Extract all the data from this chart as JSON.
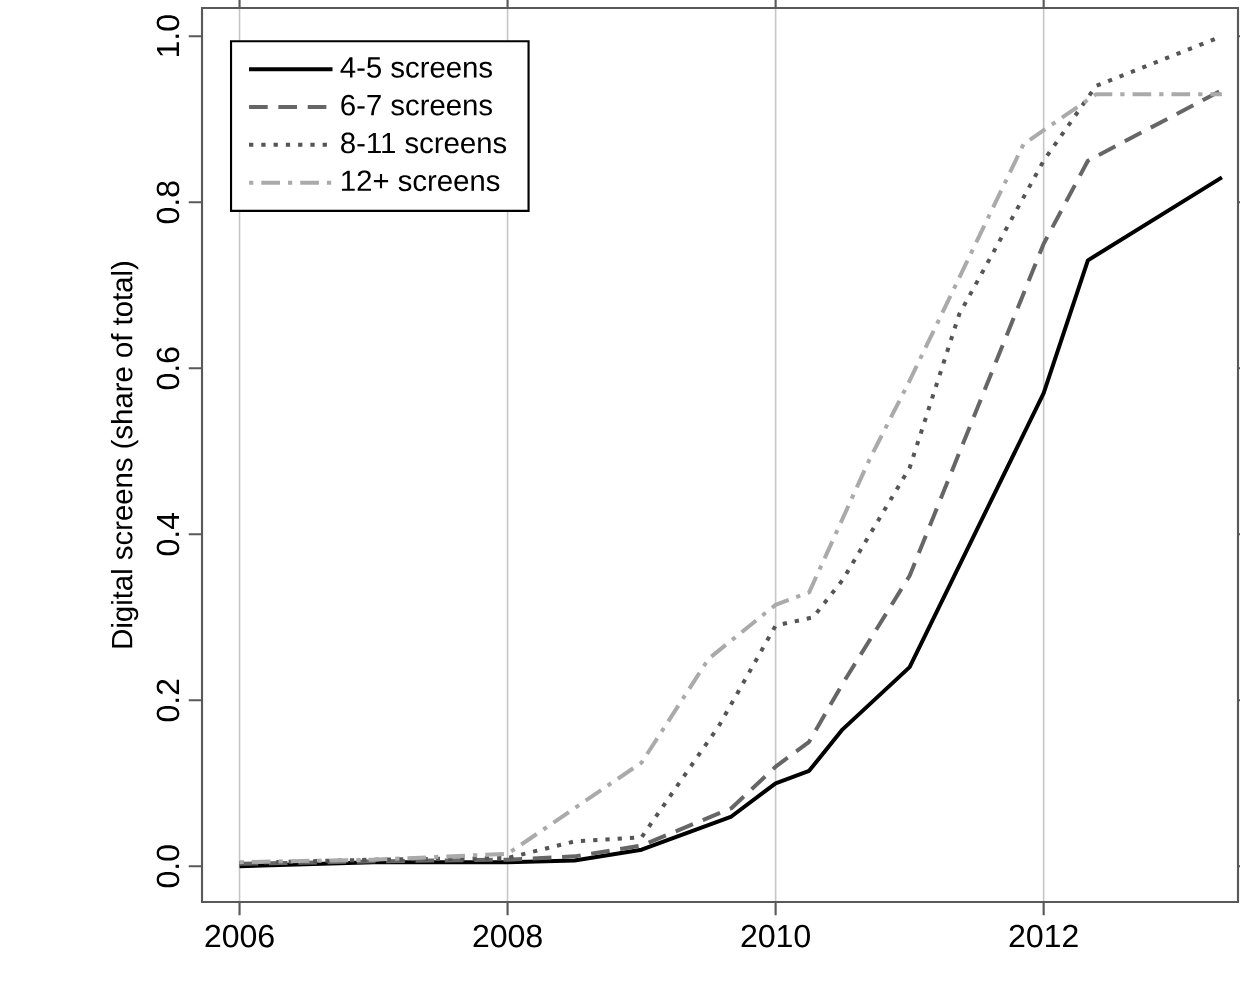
{
  "chart_data": {
    "type": "line",
    "ylabel": "Digital screens (share of total)",
    "xlim": [
      2005.72,
      2013.45
    ],
    "ylim": [
      -0.043,
      1.034
    ],
    "xticks": [
      2006,
      2008,
      2010,
      2012
    ],
    "yticks": [
      {
        "value": 0,
        "label": "0.0"
      },
      0.2,
      0.4,
      0.6,
      0.8,
      {
        "value": 1,
        "label": "1.0"
      }
    ],
    "grid": "x",
    "legend": "top left",
    "series": [
      {
        "name": "4-5 screens",
        "color": "#000000",
        "line_style": "solid",
        "x": [
          2006,
          2007,
          2008,
          2008.5,
          2009,
          2009.67,
          2010,
          2010.25,
          2010.5,
          2011,
          2012,
          2012.33,
          2013.33
        ],
        "values": [
          0.0,
          0.005,
          0.005,
          0.007,
          0.02,
          0.06,
          0.1,
          0.115,
          0.165,
          0.24,
          0.57,
          0.73,
          0.83
        ]
      },
      {
        "name": "6-7 screens",
        "color": "#666666",
        "line_style": "dashed",
        "x": [
          2006,
          2007,
          2008,
          2008.5,
          2009,
          2009.67,
          2010,
          2010.25,
          2010.5,
          2011,
          2012,
          2012.33,
          2013.33
        ],
        "values": [
          0.003,
          0.006,
          0.008,
          0.012,
          0.025,
          0.07,
          0.12,
          0.15,
          0.22,
          0.35,
          0.75,
          0.85,
          0.935
        ]
      },
      {
        "name": "8-11 screens",
        "color": "#555555",
        "line_style": "dotted",
        "x": [
          2006,
          2007,
          2008,
          2008.5,
          2009,
          2009.58,
          2010,
          2010.28,
          2010.5,
          2011,
          2011.37,
          2012,
          2012.39,
          2013.33
        ],
        "values": [
          0.004,
          0.008,
          0.01,
          0.03,
          0.035,
          0.17,
          0.29,
          0.3,
          0.345,
          0.48,
          0.665,
          0.85,
          0.94,
          1.0
        ]
      },
      {
        "name": "12+ screens",
        "color": "#aaaaaa",
        "line_style": "dashdot",
        "x": [
          2006,
          2007,
          2008,
          2009,
          2009.5,
          2010,
          2010.25,
          2010.7,
          2011,
          2011.85,
          2012.39,
          2013.33
        ],
        "values": [
          0.005,
          0.008,
          0.015,
          0.125,
          0.25,
          0.315,
          0.33,
          0.49,
          0.585,
          0.87,
          0.93,
          0.93
        ]
      }
    ]
  }
}
